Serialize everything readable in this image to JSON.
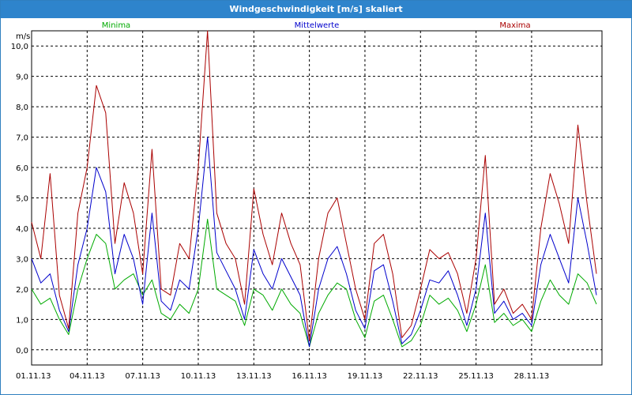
{
  "window": {
    "title": "Windgeschwindigkeit [m/s] skaliert"
  },
  "colors": {
    "titlebar": "#2e84cc",
    "minima": "#00aa00",
    "mittelwerte": "#0000cc",
    "maxima": "#aa0000",
    "grid": "#000000"
  },
  "chart_data": {
    "type": "line",
    "title": "Windgeschwindigkeit [m/s] skaliert",
    "ylabel": "m/s",
    "xlabel": "",
    "ylim": [
      -0.5,
      10.5
    ],
    "xlim": [
      0,
      30.8
    ],
    "grid": true,
    "legend_placement": "top",
    "y_ticks": [
      "0,0",
      "1,0",
      "2,0",
      "3,0",
      "4,0",
      "5,0",
      "6,0",
      "7,0",
      "8,0",
      "9,0",
      "10,0"
    ],
    "x_tick_labels": [
      "01.11.13",
      "04.11.13",
      "07.11.13",
      "10.11.13",
      "13.11.13",
      "16.11.13",
      "19.11.13",
      "22.11.13",
      "25.11.13",
      "28.11.13"
    ],
    "x_tick_days": [
      0,
      3,
      6,
      9,
      12,
      15,
      18,
      21,
      24,
      27
    ],
    "series": [
      {
        "name": "Minima",
        "color": "#00aa00",
        "x": [
          0,
          0.5,
          1,
          1.5,
          2,
          2.5,
          3,
          3.5,
          4,
          4.5,
          5,
          5.5,
          6,
          6.5,
          7,
          7.5,
          8,
          8.5,
          9,
          9.5,
          10,
          10.5,
          11,
          11.5,
          12,
          12.5,
          13,
          13.5,
          14,
          14.5,
          15,
          15.5,
          16,
          16.5,
          17,
          17.5,
          18,
          18.5,
          19,
          19.5,
          20,
          20.5,
          21,
          21.5,
          22,
          22.5,
          23,
          23.5,
          24,
          24.5,
          25,
          25.5,
          26,
          26.5,
          27,
          27.5,
          28,
          28.5,
          29,
          29.5,
          30,
          30.5
        ],
        "values": [
          2.0,
          1.5,
          1.7,
          1.0,
          0.5,
          2.0,
          3.0,
          3.8,
          3.5,
          2.0,
          2.3,
          2.5,
          1.8,
          2.3,
          1.2,
          1.0,
          1.5,
          1.2,
          2.0,
          4.3,
          2.0,
          1.8,
          1.6,
          0.8,
          2.0,
          1.8,
          1.3,
          2.0,
          1.5,
          1.2,
          0.1,
          1.2,
          1.8,
          2.2,
          2.0,
          1.0,
          0.4,
          1.6,
          1.8,
          1.0,
          0.1,
          0.3,
          0.8,
          1.8,
          1.5,
          1.7,
          1.3,
          0.6,
          1.5,
          2.8,
          0.9,
          1.2,
          0.8,
          1.0,
          0.6,
          1.6,
          2.3,
          1.8,
          1.5,
          2.5,
          2.2,
          1.5
        ]
      },
      {
        "name": "Mittelwerte",
        "color": "#0000cc",
        "x": [
          0,
          0.5,
          1,
          1.5,
          2,
          2.5,
          3,
          3.5,
          4,
          4.5,
          5,
          5.5,
          6,
          6.5,
          7,
          7.5,
          8,
          8.5,
          9,
          9.5,
          10,
          10.5,
          11,
          11.5,
          12,
          12.5,
          13,
          13.5,
          14,
          14.5,
          15,
          15.5,
          16,
          16.5,
          17,
          17.5,
          18,
          18.5,
          19,
          19.5,
          20,
          20.5,
          21,
          21.5,
          22,
          22.5,
          23,
          23.5,
          24,
          24.5,
          25,
          25.5,
          26,
          26.5,
          27,
          27.5,
          28,
          28.5,
          29,
          29.5,
          30,
          30.5
        ],
        "values": [
          3.0,
          2.2,
          2.5,
          1.3,
          0.6,
          2.8,
          4.0,
          6.0,
          5.2,
          2.5,
          3.8,
          3.0,
          1.5,
          4.5,
          1.6,
          1.3,
          2.3,
          2.0,
          4.0,
          7.0,
          3.2,
          2.6,
          2.0,
          1.0,
          3.3,
          2.5,
          2.0,
          3.0,
          2.4,
          1.8,
          0.1,
          2.0,
          3.0,
          3.4,
          2.5,
          1.3,
          0.7,
          2.6,
          2.8,
          1.6,
          0.2,
          0.5,
          1.3,
          2.3,
          2.2,
          2.6,
          1.8,
          0.8,
          2.0,
          4.5,
          1.2,
          1.6,
          1.0,
          1.2,
          0.8,
          2.8,
          3.8,
          3.0,
          2.2,
          5.0,
          3.5,
          1.8
        ]
      },
      {
        "name": "Maxima",
        "color": "#aa0000",
        "x": [
          0,
          0.5,
          1,
          1.5,
          2,
          2.5,
          3,
          3.5,
          4,
          4.5,
          5,
          5.5,
          6,
          6.5,
          7,
          7.5,
          8,
          8.5,
          9,
          9.5,
          10,
          10.5,
          11,
          11.5,
          12,
          12.5,
          13,
          13.5,
          14,
          14.5,
          15,
          15.5,
          16,
          16.5,
          17,
          17.5,
          18,
          18.5,
          19,
          19.5,
          20,
          20.5,
          21,
          21.5,
          22,
          22.5,
          23,
          23.5,
          24,
          24.5,
          25,
          25.5,
          26,
          26.5,
          27,
          27.5,
          28,
          28.5,
          29,
          29.5,
          30,
          30.5
        ],
        "values": [
          4.2,
          3.0,
          5.8,
          1.8,
          0.7,
          4.5,
          6.0,
          8.7,
          7.8,
          3.5,
          5.5,
          4.5,
          2.5,
          6.6,
          2.0,
          1.8,
          3.5,
          3.0,
          6.0,
          10.5,
          4.5,
          3.5,
          3.0,
          1.5,
          5.3,
          3.8,
          2.8,
          4.5,
          3.5,
          2.8,
          0.3,
          3.0,
          4.5,
          5.0,
          3.5,
          2.0,
          1.0,
          3.5,
          3.8,
          2.5,
          0.4,
          0.8,
          2.0,
          3.3,
          3.0,
          3.2,
          2.5,
          1.2,
          3.0,
          6.4,
          1.5,
          2.0,
          1.2,
          1.5,
          1.0,
          4.0,
          5.8,
          4.8,
          3.5,
          7.4,
          4.8,
          2.5
        ]
      }
    ]
  }
}
